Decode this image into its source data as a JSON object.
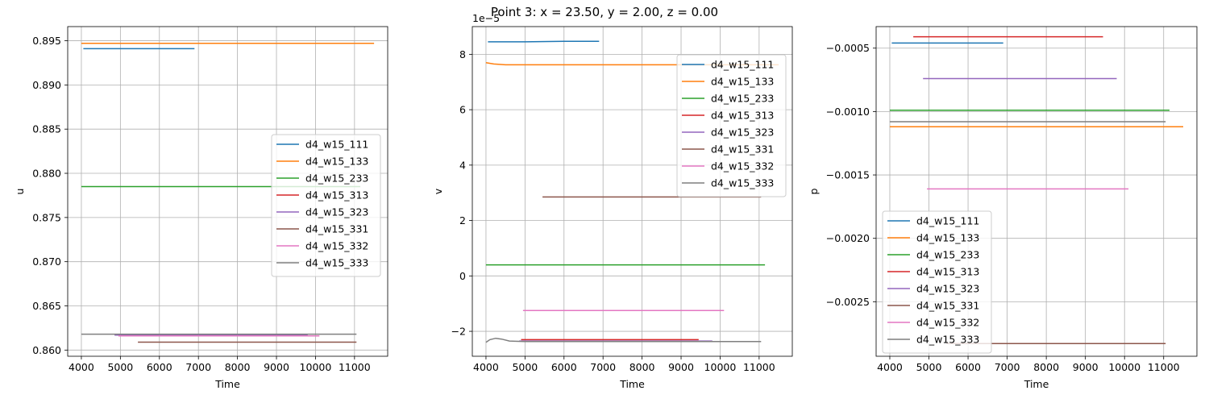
{
  "suptitle": "Point 3: x = 23.50, y = 2.00, z = 0.00",
  "chart_data": [
    {
      "type": "line",
      "xlabel": "Time",
      "ylabel": "u",
      "xlim": [
        3650,
        11850
      ],
      "ylim": [
        0.8593,
        0.8966
      ],
      "xticks": [
        4000,
        5000,
        6000,
        7000,
        8000,
        9000,
        10000,
        11000
      ],
      "xtick_labels": [
        "4000",
        "5000",
        "6000",
        "7000",
        "8000",
        "9000",
        "10000",
        "11000"
      ],
      "yticks": [
        0.86,
        0.865,
        0.87,
        0.875,
        0.88,
        0.885,
        0.89,
        0.895
      ],
      "ytick_labels": [
        "0.860",
        "0.865",
        "0.870",
        "0.875",
        "0.880",
        "0.885",
        "0.890",
        "0.895"
      ],
      "grid": true,
      "legend_position": "center-right",
      "series": [
        {
          "name": "d4_w15_111",
          "color": "#1f77b4",
          "x": [
            4050,
            6900
          ],
          "y": [
            0.8941,
            0.8941
          ]
        },
        {
          "name": "d4_w15_133",
          "color": "#ff7f0e",
          "x": [
            4000,
            11500
          ],
          "y": [
            0.8947,
            0.8947
          ]
        },
        {
          "name": "d4_w15_233",
          "color": "#2ca02c",
          "x": [
            4000,
            11150
          ],
          "y": [
            0.8785,
            0.8785
          ]
        },
        {
          "name": "d4_w15_313",
          "color": "#d62728",
          "x": [
            4900,
            9450
          ],
          "y": [
            0.8617,
            0.8617
          ]
        },
        {
          "name": "d4_w15_323",
          "color": "#9467bd",
          "x": [
            4850,
            9800
          ],
          "y": [
            0.8617,
            0.8617
          ]
        },
        {
          "name": "d4_w15_331",
          "color": "#8c564b",
          "x": [
            5450,
            11050
          ],
          "y": [
            0.8609,
            0.8609
          ]
        },
        {
          "name": "d4_w15_332",
          "color": "#e377c2",
          "x": [
            4950,
            10100
          ],
          "y": [
            0.8616,
            0.8616
          ]
        },
        {
          "name": "d4_w15_333",
          "color": "#7f7f7f",
          "x": [
            4000,
            11050
          ],
          "y": [
            0.8618,
            0.8618
          ]
        }
      ]
    },
    {
      "type": "line",
      "xlabel": "Time",
      "ylabel": "v",
      "offset_text": "1e−5",
      "xlim": [
        3650,
        11850
      ],
      "ylim": [
        -2.9,
        9.0
      ],
      "xticks": [
        4000,
        5000,
        6000,
        7000,
        8000,
        9000,
        10000,
        11000
      ],
      "xtick_labels": [
        "4000",
        "5000",
        "6000",
        "7000",
        "8000",
        "9000",
        "10000",
        "11000"
      ],
      "yticks": [
        -2,
        0,
        2,
        4,
        6,
        8
      ],
      "ytick_labels": [
        "−2",
        "0",
        "2",
        "4",
        "6",
        "8"
      ],
      "grid": true,
      "legend_position": "upper-right",
      "series": [
        {
          "name": "d4_w15_111",
          "color": "#1f77b4",
          "x": [
            4050,
            5000,
            6000,
            6900
          ],
          "y": [
            8.45,
            8.45,
            8.47,
            8.47
          ]
        },
        {
          "name": "d4_w15_133",
          "color": "#ff7f0e",
          "x": [
            4000,
            4200,
            4500,
            5000,
            7000,
            9000,
            11500
          ],
          "y": [
            7.7,
            7.65,
            7.62,
            7.62,
            7.62,
            7.62,
            7.62
          ]
        },
        {
          "name": "d4_w15_233",
          "color": "#2ca02c",
          "x": [
            4000,
            11150
          ],
          "y": [
            0.4,
            0.4
          ]
        },
        {
          "name": "d4_w15_313",
          "color": "#d62728",
          "x": [
            4900,
            9450
          ],
          "y": [
            -2.3,
            -2.3
          ]
        },
        {
          "name": "d4_w15_323",
          "color": "#9467bd",
          "x": [
            4850,
            9800
          ],
          "y": [
            -2.35,
            -2.35
          ]
        },
        {
          "name": "d4_w15_331",
          "color": "#8c564b",
          "x": [
            5450,
            11050
          ],
          "y": [
            2.85,
            2.85
          ]
        },
        {
          "name": "d4_w15_332",
          "color": "#e377c2",
          "x": [
            4950,
            10100
          ],
          "y": [
            -1.25,
            -1.25
          ]
        },
        {
          "name": "d4_w15_333",
          "color": "#7f7f7f",
          "x": [
            4000,
            4100,
            4250,
            4400,
            4600,
            5000,
            6000,
            8000,
            11050
          ],
          "y": [
            -2.4,
            -2.3,
            -2.25,
            -2.28,
            -2.35,
            -2.37,
            -2.37,
            -2.37,
            -2.37
          ]
        }
      ]
    },
    {
      "type": "line",
      "xlabel": "Time",
      "ylabel": "p",
      "xlim": [
        3650,
        11850
      ],
      "ylim": [
        -0.00293,
        -0.00033
      ],
      "xticks": [
        4000,
        5000,
        6000,
        7000,
        8000,
        9000,
        10000,
        11000
      ],
      "xtick_labels": [
        "4000",
        "5000",
        "6000",
        "7000",
        "8000",
        "9000",
        "10000",
        "11000"
      ],
      "yticks": [
        -0.0025,
        -0.002,
        -0.0015,
        -0.001,
        -0.0005
      ],
      "ytick_labels": [
        "−0.0025",
        "−0.0020",
        "−0.0015",
        "−0.0010",
        "−0.0005"
      ],
      "grid": true,
      "legend_position": "lower-left",
      "series": [
        {
          "name": "d4_w15_111",
          "color": "#1f77b4",
          "x": [
            4050,
            6900
          ],
          "y": [
            -0.00046,
            -0.00046
          ]
        },
        {
          "name": "d4_w15_133",
          "color": "#ff7f0e",
          "x": [
            4000,
            11500
          ],
          "y": [
            -0.00112,
            -0.00112
          ]
        },
        {
          "name": "d4_w15_233",
          "color": "#2ca02c",
          "x": [
            4000,
            11150
          ],
          "y": [
            -0.00099,
            -0.00099
          ]
        },
        {
          "name": "d4_w15_313",
          "color": "#d62728",
          "x": [
            4600,
            9450
          ],
          "y": [
            -0.00041,
            -0.00041
          ]
        },
        {
          "name": "d4_w15_323",
          "color": "#9467bd",
          "x": [
            4850,
            9800
          ],
          "y": [
            -0.00074,
            -0.00074
          ]
        },
        {
          "name": "d4_w15_331",
          "color": "#8c564b",
          "x": [
            5450,
            11050
          ],
          "y": [
            -0.00283,
            -0.00283
          ]
        },
        {
          "name": "d4_w15_332",
          "color": "#e377c2",
          "x": [
            4950,
            10100
          ],
          "y": [
            -0.00161,
            -0.00161
          ]
        },
        {
          "name": "d4_w15_333",
          "color": "#7f7f7f",
          "x": [
            4000,
            11050
          ],
          "y": [
            -0.00108,
            -0.00108
          ]
        }
      ]
    }
  ]
}
